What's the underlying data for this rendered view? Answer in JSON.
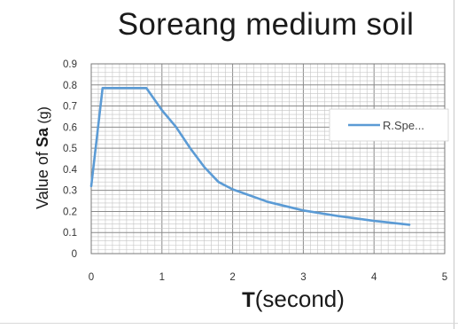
{
  "chart_data": {
    "type": "line",
    "title": "Soreang medium soil",
    "xlabel": "T(second)",
    "ylabel": "Value of Sa (g)",
    "xlim": [
      0,
      5
    ],
    "ylim": [
      0,
      0.9
    ],
    "x_ticks": [
      "0",
      "1",
      "2",
      "3",
      "4",
      "5"
    ],
    "y_ticks": [
      "0",
      "0.1",
      "0.2",
      "0.3",
      "0.4",
      "0.5",
      "0.6",
      "0.7",
      "0.8",
      "0.9"
    ],
    "grid": true,
    "legend_position": "right",
    "series": [
      {
        "name": "R.Spe...",
        "color": "#5b9bd5",
        "x": [
          0,
          0.16,
          0.78,
          1.0,
          1.2,
          1.4,
          1.6,
          1.8,
          2.0,
          2.5,
          3.0,
          3.5,
          4.0,
          4.5
        ],
        "y": [
          0.32,
          0.785,
          0.785,
          0.68,
          0.6,
          0.5,
          0.41,
          0.34,
          0.305,
          0.245,
          0.205,
          0.178,
          0.155,
          0.137
        ]
      }
    ]
  }
}
